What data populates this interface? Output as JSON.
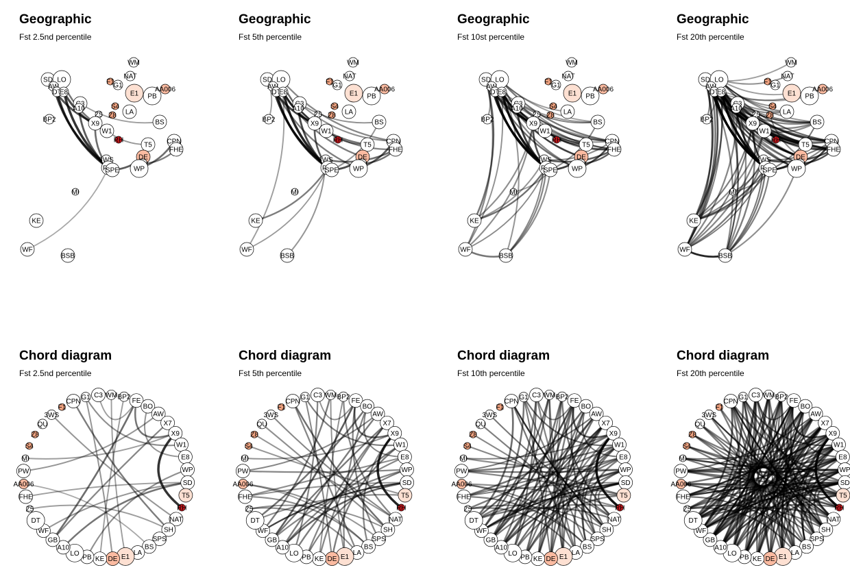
{
  "colors": {
    "node_default": "#ffffff",
    "node_light": "#fde0d2",
    "node_medium": "#f4a582",
    "node_salmon": "#fcbba1",
    "node_red": "#cb181d",
    "node_darkred": "#b2182b",
    "edge": "#000000"
  },
  "panels": [
    {
      "kind": "geographic",
      "title": "Geographic",
      "subtitle": "Fst 2.5nd percentile",
      "level": 1
    },
    {
      "kind": "geographic",
      "title": "Geographic",
      "subtitle": "Fst 5th percentile",
      "level": 2
    },
    {
      "kind": "geographic",
      "title": "Geographic",
      "subtitle": "Fst 10st percentile",
      "level": 3
    },
    {
      "kind": "geographic",
      "title": "Geographic",
      "subtitle": "Fst 20th percentile",
      "level": 4
    },
    {
      "kind": "chord",
      "title": "Chord diagram",
      "subtitle": "Fst 2.5nd percentile",
      "level": 1
    },
    {
      "kind": "chord",
      "title": "Chord diagram",
      "subtitle": "Fst 5th percentile",
      "level": 2
    },
    {
      "kind": "chord",
      "title": "Chord diagram",
      "subtitle": "Fst 10th percentile",
      "level": 3
    },
    {
      "kind": "chord",
      "title": "Chord diagram",
      "subtitle": "Fst 20th percentile",
      "level": 4
    }
  ],
  "geo_nodes": [
    {
      "label": "WM",
      "size": "s",
      "color": "white"
    },
    {
      "label": "NAT",
      "size": "s",
      "color": "white"
    },
    {
      "label": "SD",
      "size": "m",
      "color": "white"
    },
    {
      "label": "LO",
      "size": "l",
      "color": "white"
    },
    {
      "label": "AW",
      "size": "s",
      "color": "white"
    },
    {
      "label": "DT",
      "size": "s",
      "color": "white"
    },
    {
      "label": "E8",
      "size": "s",
      "color": "white"
    },
    {
      "label": "F1",
      "size": "xs",
      "color": "medium"
    },
    {
      "label": "G1",
      "size": "s",
      "color": "white"
    },
    {
      "label": "E1",
      "size": "l",
      "color": "light"
    },
    {
      "label": "PB",
      "size": "l",
      "color": "white"
    },
    {
      "label": "AA006",
      "size": "s",
      "color": "salmon"
    },
    {
      "label": "C3",
      "size": "m",
      "color": "white"
    },
    {
      "label": "A10",
      "size": "s",
      "color": "white"
    },
    {
      "label": "S4",
      "size": "xs",
      "color": "medium"
    },
    {
      "label": "Z5",
      "size": "xs",
      "color": "white"
    },
    {
      "label": "Z8",
      "size": "xs",
      "color": "medium"
    },
    {
      "label": "LA",
      "size": "m",
      "color": "white"
    },
    {
      "label": "BP2",
      "size": "s",
      "color": "white"
    },
    {
      "label": "X9",
      "size": "m",
      "color": "white"
    },
    {
      "label": "W1",
      "size": "m",
      "color": "white"
    },
    {
      "label": "BS",
      "size": "m",
      "color": "white"
    },
    {
      "label": "RH",
      "size": "xs",
      "color": "red"
    },
    {
      "label": "CPN",
      "size": "m",
      "color": "white"
    },
    {
      "label": "FHE",
      "size": "m",
      "color": "white"
    },
    {
      "label": "T5",
      "size": "m",
      "color": "white"
    },
    {
      "label": "DE",
      "size": "m",
      "color": "salmon"
    },
    {
      "label": "3WS",
      "size": "s",
      "color": "white"
    },
    {
      "label": "PW",
      "size": "m",
      "color": "white"
    },
    {
      "label": "SPE",
      "size": "m",
      "color": "white"
    },
    {
      "label": "QU",
      "size": "s",
      "color": "white"
    },
    {
      "label": "WP",
      "size": "l",
      "color": "white"
    },
    {
      "label": "MI",
      "size": "xs",
      "color": "white"
    },
    {
      "label": "KE",
      "size": "m",
      "color": "white"
    },
    {
      "label": "WF",
      "size": "m",
      "color": "white"
    },
    {
      "label": "BSB",
      "size": "m",
      "color": "white"
    }
  ],
  "chord_nodes": [
    {
      "label": "CPN",
      "size": "m",
      "color": "white"
    },
    {
      "label": "G1",
      "size": "s",
      "color": "white"
    },
    {
      "label": "C3",
      "size": "m",
      "color": "white"
    },
    {
      "label": "WM",
      "size": "s",
      "color": "white"
    },
    {
      "label": "BP2",
      "size": "s",
      "color": "white"
    },
    {
      "label": "FE",
      "size": "m",
      "color": "white"
    },
    {
      "label": "BO",
      "size": "m",
      "color": "white"
    },
    {
      "label": "AW",
      "size": "m",
      "color": "white"
    },
    {
      "label": "X7",
      "size": "m",
      "color": "white"
    },
    {
      "label": "X9",
      "size": "m",
      "color": "white"
    },
    {
      "label": "W1",
      "size": "m",
      "color": "white"
    },
    {
      "label": "E8",
      "size": "m",
      "color": "white"
    },
    {
      "label": "WP",
      "size": "m",
      "color": "white"
    },
    {
      "label": "SD",
      "size": "m",
      "color": "white"
    },
    {
      "label": "T5",
      "size": "m",
      "color": "light"
    },
    {
      "label": "RH",
      "size": "xs",
      "color": "red"
    },
    {
      "label": "NAT",
      "size": "m",
      "color": "white"
    },
    {
      "label": "SH",
      "size": "m",
      "color": "white"
    },
    {
      "label": "SPS",
      "size": "m",
      "color": "white"
    },
    {
      "label": "BS",
      "size": "m",
      "color": "white"
    },
    {
      "label": "LA",
      "size": "m",
      "color": "white"
    },
    {
      "label": "E1",
      "size": "l",
      "color": "light"
    },
    {
      "label": "DE",
      "size": "m",
      "color": "salmon"
    },
    {
      "label": "KE",
      "size": "m",
      "color": "white"
    },
    {
      "label": "PB",
      "size": "m",
      "color": "white"
    },
    {
      "label": "LO",
      "size": "l",
      "color": "white"
    },
    {
      "label": "A10",
      "size": "m",
      "color": "white"
    },
    {
      "label": "GB",
      "size": "m",
      "color": "white"
    },
    {
      "label": "WF",
      "size": "m",
      "color": "white"
    },
    {
      "label": "DT",
      "size": "l",
      "color": "white"
    },
    {
      "label": "Z5",
      "size": "xs",
      "color": "white"
    },
    {
      "label": "FHE",
      "size": "m",
      "color": "white"
    },
    {
      "label": "AA006",
      "size": "s",
      "color": "salmon"
    },
    {
      "label": "PW",
      "size": "m",
      "color": "white"
    },
    {
      "label": "MI",
      "size": "xs",
      "color": "white"
    },
    {
      "label": "S4",
      "size": "xs",
      "color": "medium"
    },
    {
      "label": "Z8",
      "size": "xs",
      "color": "medium"
    },
    {
      "label": "QU",
      "size": "s",
      "color": "white"
    },
    {
      "label": "3WS",
      "size": "s",
      "color": "white"
    },
    {
      "label": "F1",
      "size": "xs",
      "color": "medium"
    }
  ]
}
